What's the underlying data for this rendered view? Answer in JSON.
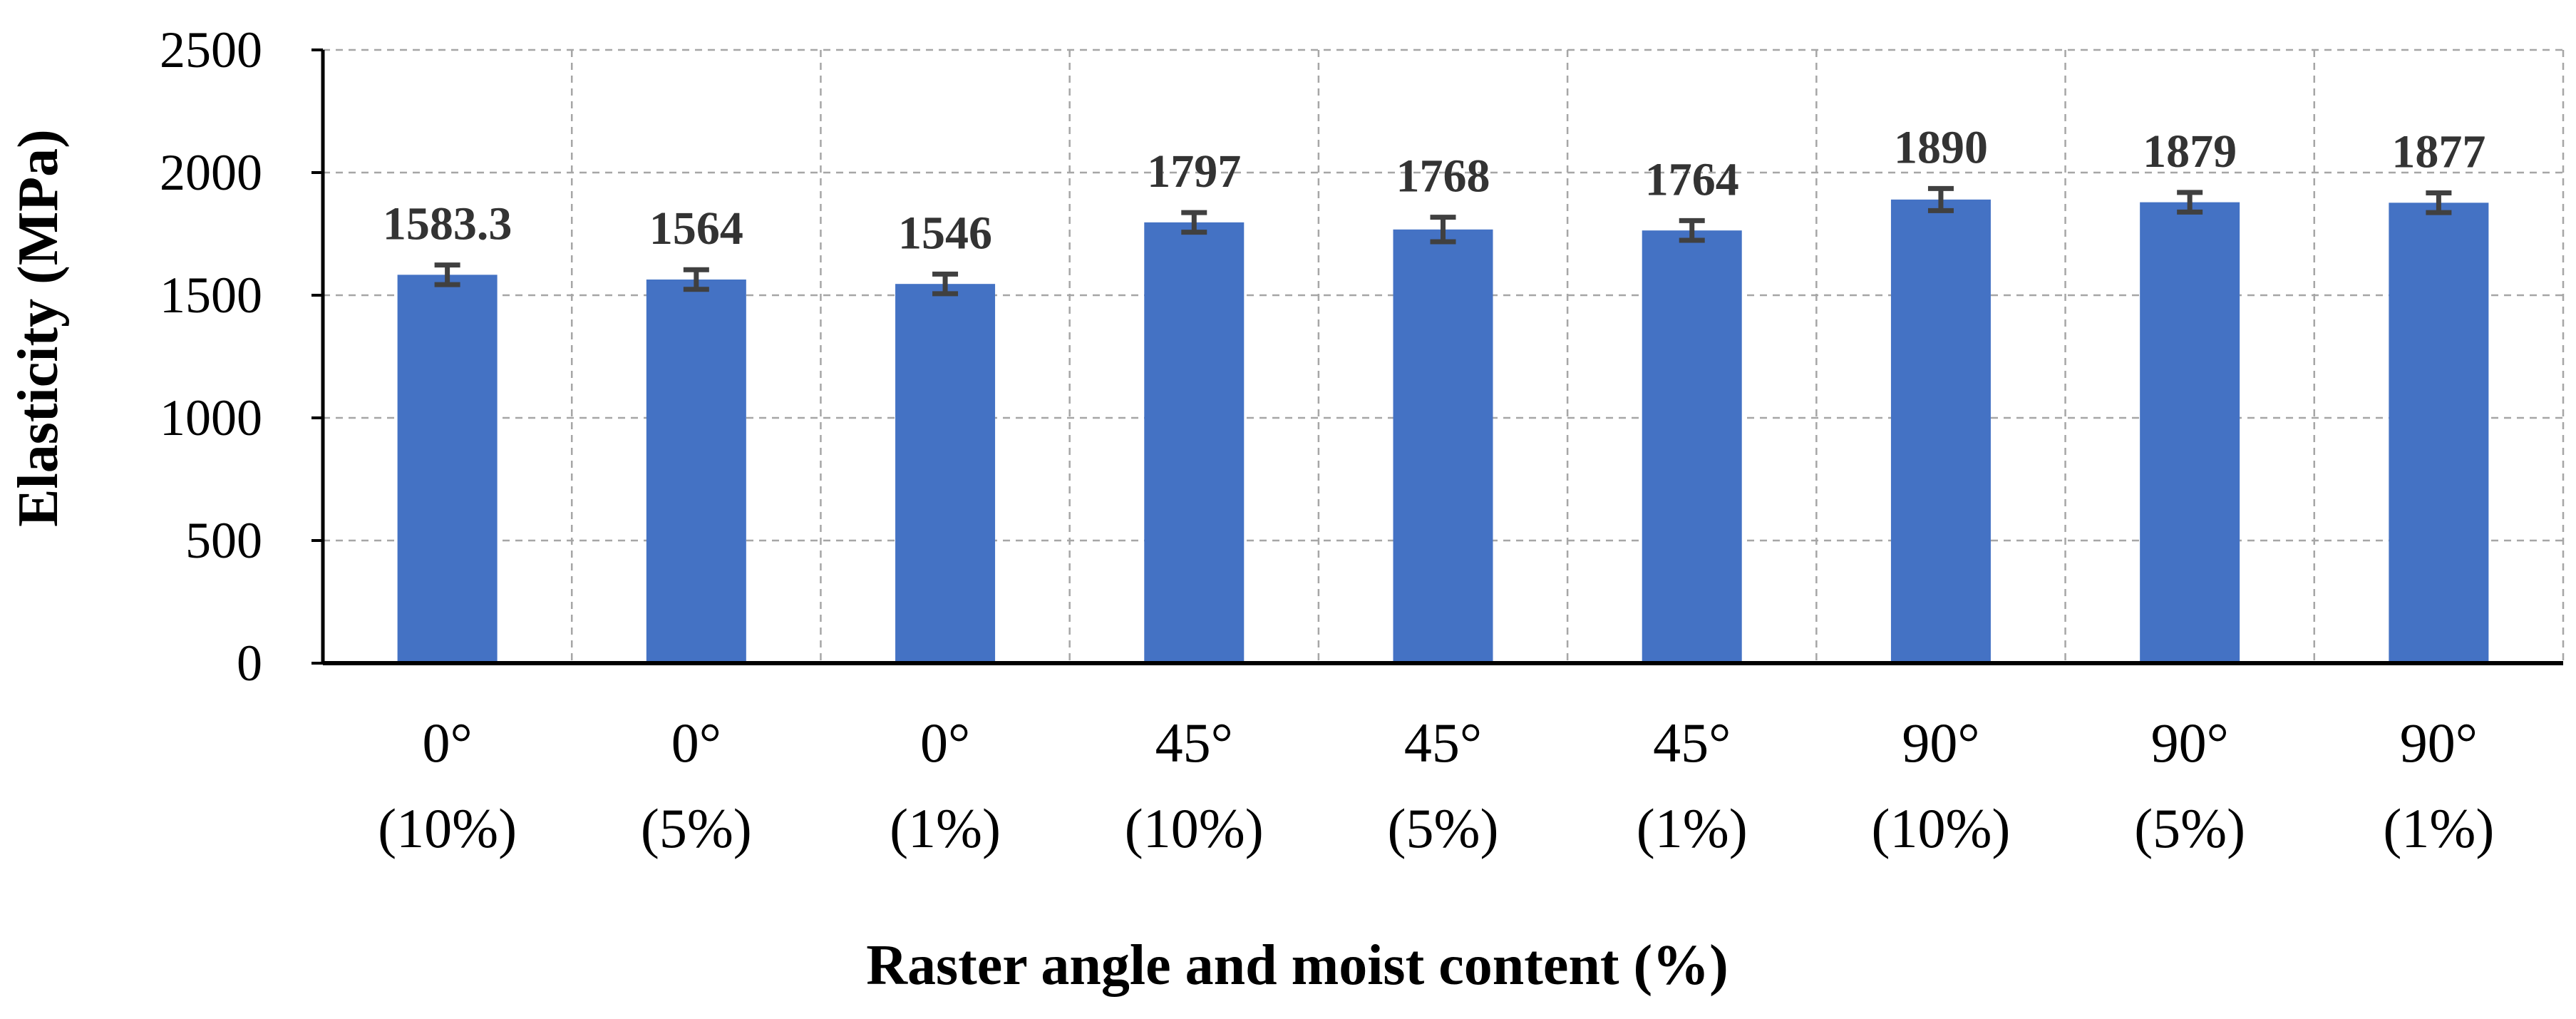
{
  "chart_data": {
    "type": "bar",
    "title": "",
    "xlabel": "Raster angle and moist content (%)",
    "ylabel": "Elasticity (MPa)",
    "ylim": [
      0,
      2500
    ],
    "yticks": [
      0,
      500,
      1000,
      1500,
      2000,
      2500
    ],
    "grid": true,
    "categories": [
      {
        "angle": "0°",
        "moist": "(10%)"
      },
      {
        "angle": "0°",
        "moist": "(5%)"
      },
      {
        "angle": "0°",
        "moist": "(1%)"
      },
      {
        "angle": "45°",
        "moist": "(10%)"
      },
      {
        "angle": "45°",
        "moist": "(5%)"
      },
      {
        "angle": "45°",
        "moist": "(1%)"
      },
      {
        "angle": "90°",
        "moist": "(10%)"
      },
      {
        "angle": "90°",
        "moist": "(5%)"
      },
      {
        "angle": "90°",
        "moist": "(1%)"
      }
    ],
    "values": [
      1583.3,
      1564,
      1546,
      1797,
      1768,
      1764,
      1890,
      1879,
      1877
    ],
    "value_labels": [
      "1583.3",
      "1564",
      "1546",
      "1797",
      "1768",
      "1764",
      "1890",
      "1879",
      "1877"
    ],
    "error": [
      40,
      40,
      40,
      40,
      50,
      40,
      45,
      40,
      40
    ],
    "bar_color": "#4472C4",
    "error_color": "#404040"
  }
}
